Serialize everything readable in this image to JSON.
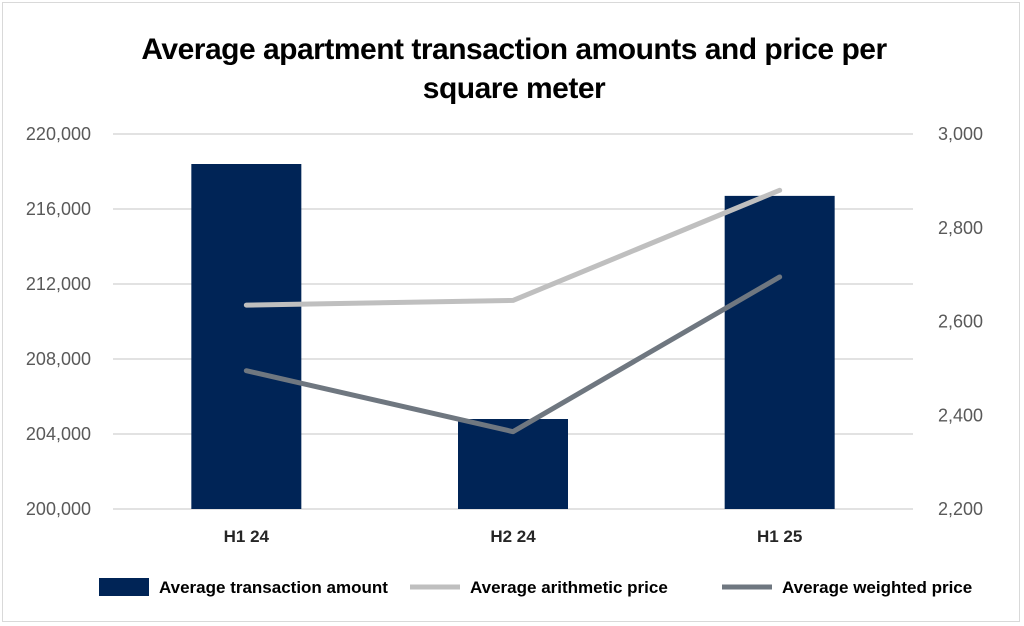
{
  "chart_data": {
    "type": "bar",
    "title_lines": [
      "Average apartment transaction amounts and price per",
      "square meter"
    ],
    "categories": [
      "H1 24",
      "H2 24",
      "H1 25"
    ],
    "y_left": {
      "min": 200000,
      "max": 220000,
      "ticks": [
        200000,
        204000,
        208000,
        212000,
        216000,
        220000
      ],
      "tick_labels": [
        "200,000",
        "204,000",
        "208,000",
        "212,000",
        "216,000",
        "220,000"
      ]
    },
    "y_right": {
      "min": 2200,
      "max": 3000,
      "ticks": [
        2200,
        2400,
        2600,
        2800,
        3000
      ],
      "tick_labels": [
        "2,200",
        "2,400",
        "2,600",
        "2,800",
        "3,000"
      ]
    },
    "grid": true,
    "legend_position": "bottom",
    "series": [
      {
        "name": "Average transaction amount",
        "type": "bar",
        "axis": "left",
        "color": "#002456",
        "values": [
          218400,
          204800,
          216700
        ]
      },
      {
        "name": "Average arithmetic price",
        "type": "line",
        "axis": "right",
        "color": "#bfbfbf",
        "values": [
          2635,
          2645,
          2880
        ]
      },
      {
        "name": "Average weighted price",
        "type": "line",
        "axis": "right",
        "color": "#6f7780",
        "values": [
          2495,
          2365,
          2695
        ]
      }
    ]
  }
}
